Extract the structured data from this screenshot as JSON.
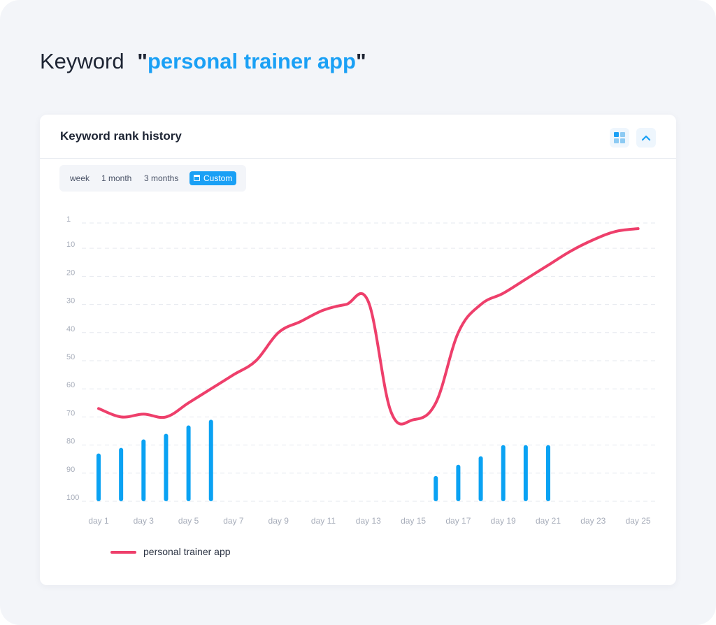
{
  "page": {
    "title_prefix": "Keyword",
    "quote_open": "\"",
    "keyword": "personal trainer app",
    "quote_close": "\""
  },
  "card": {
    "title": "Keyword rank history",
    "icons": [
      "grid-view-icon",
      "chevron-up-icon"
    ]
  },
  "range": {
    "options": [
      "week",
      "1 month",
      "3 months",
      "Custom"
    ],
    "selected": "Custom"
  },
  "colors": {
    "accent": "#1aa0f5",
    "series_line": "#ee3f6b",
    "bars": "#0aa2f3",
    "grid": "#e6e9ef",
    "tick": "#a7adba"
  },
  "chart_data": {
    "type": "line",
    "title": "",
    "xlabel": "",
    "ylabel": "",
    "y_reversed": true,
    "ylim": [
      1,
      100
    ],
    "y_ticks": [
      1,
      10,
      20,
      30,
      40,
      50,
      60,
      70,
      80,
      90,
      100
    ],
    "x_ticks": [
      "day 1",
      "day 3",
      "day 5",
      "day 7",
      "day 9",
      "day 11",
      "day 13",
      "day 15",
      "day 17",
      "day 19",
      "day 21",
      "day 23",
      "day 25"
    ],
    "categories": [
      "day 1",
      "day 2",
      "day 3",
      "day 4",
      "day 5",
      "day 6",
      "day 7",
      "day 8",
      "day 9",
      "day 10",
      "day 11",
      "day 12",
      "day 13",
      "day 14",
      "day 15",
      "day 16",
      "day 17",
      "day 18",
      "day 19",
      "day 20",
      "day 21",
      "day 22",
      "day 23",
      "day 24",
      "day 25"
    ],
    "series": [
      {
        "name": "personal trainer app",
        "values": [
          67,
          70,
          69,
          70,
          65,
          60,
          55,
          50,
          40,
          36,
          32,
          30,
          29,
          68,
          71,
          65,
          40,
          30,
          26,
          21,
          16,
          11,
          7,
          4,
          3
        ]
      }
    ],
    "bars": {
      "values": [
        83,
        81,
        78,
        76,
        73,
        71,
        null,
        null,
        null,
        null,
        null,
        null,
        null,
        null,
        null,
        91,
        87,
        84,
        80,
        80,
        80,
        null,
        null,
        null,
        null
      ]
    },
    "legend": {
      "position": "bottom-left",
      "entries": [
        "personal trainer app"
      ]
    },
    "grid": true
  }
}
